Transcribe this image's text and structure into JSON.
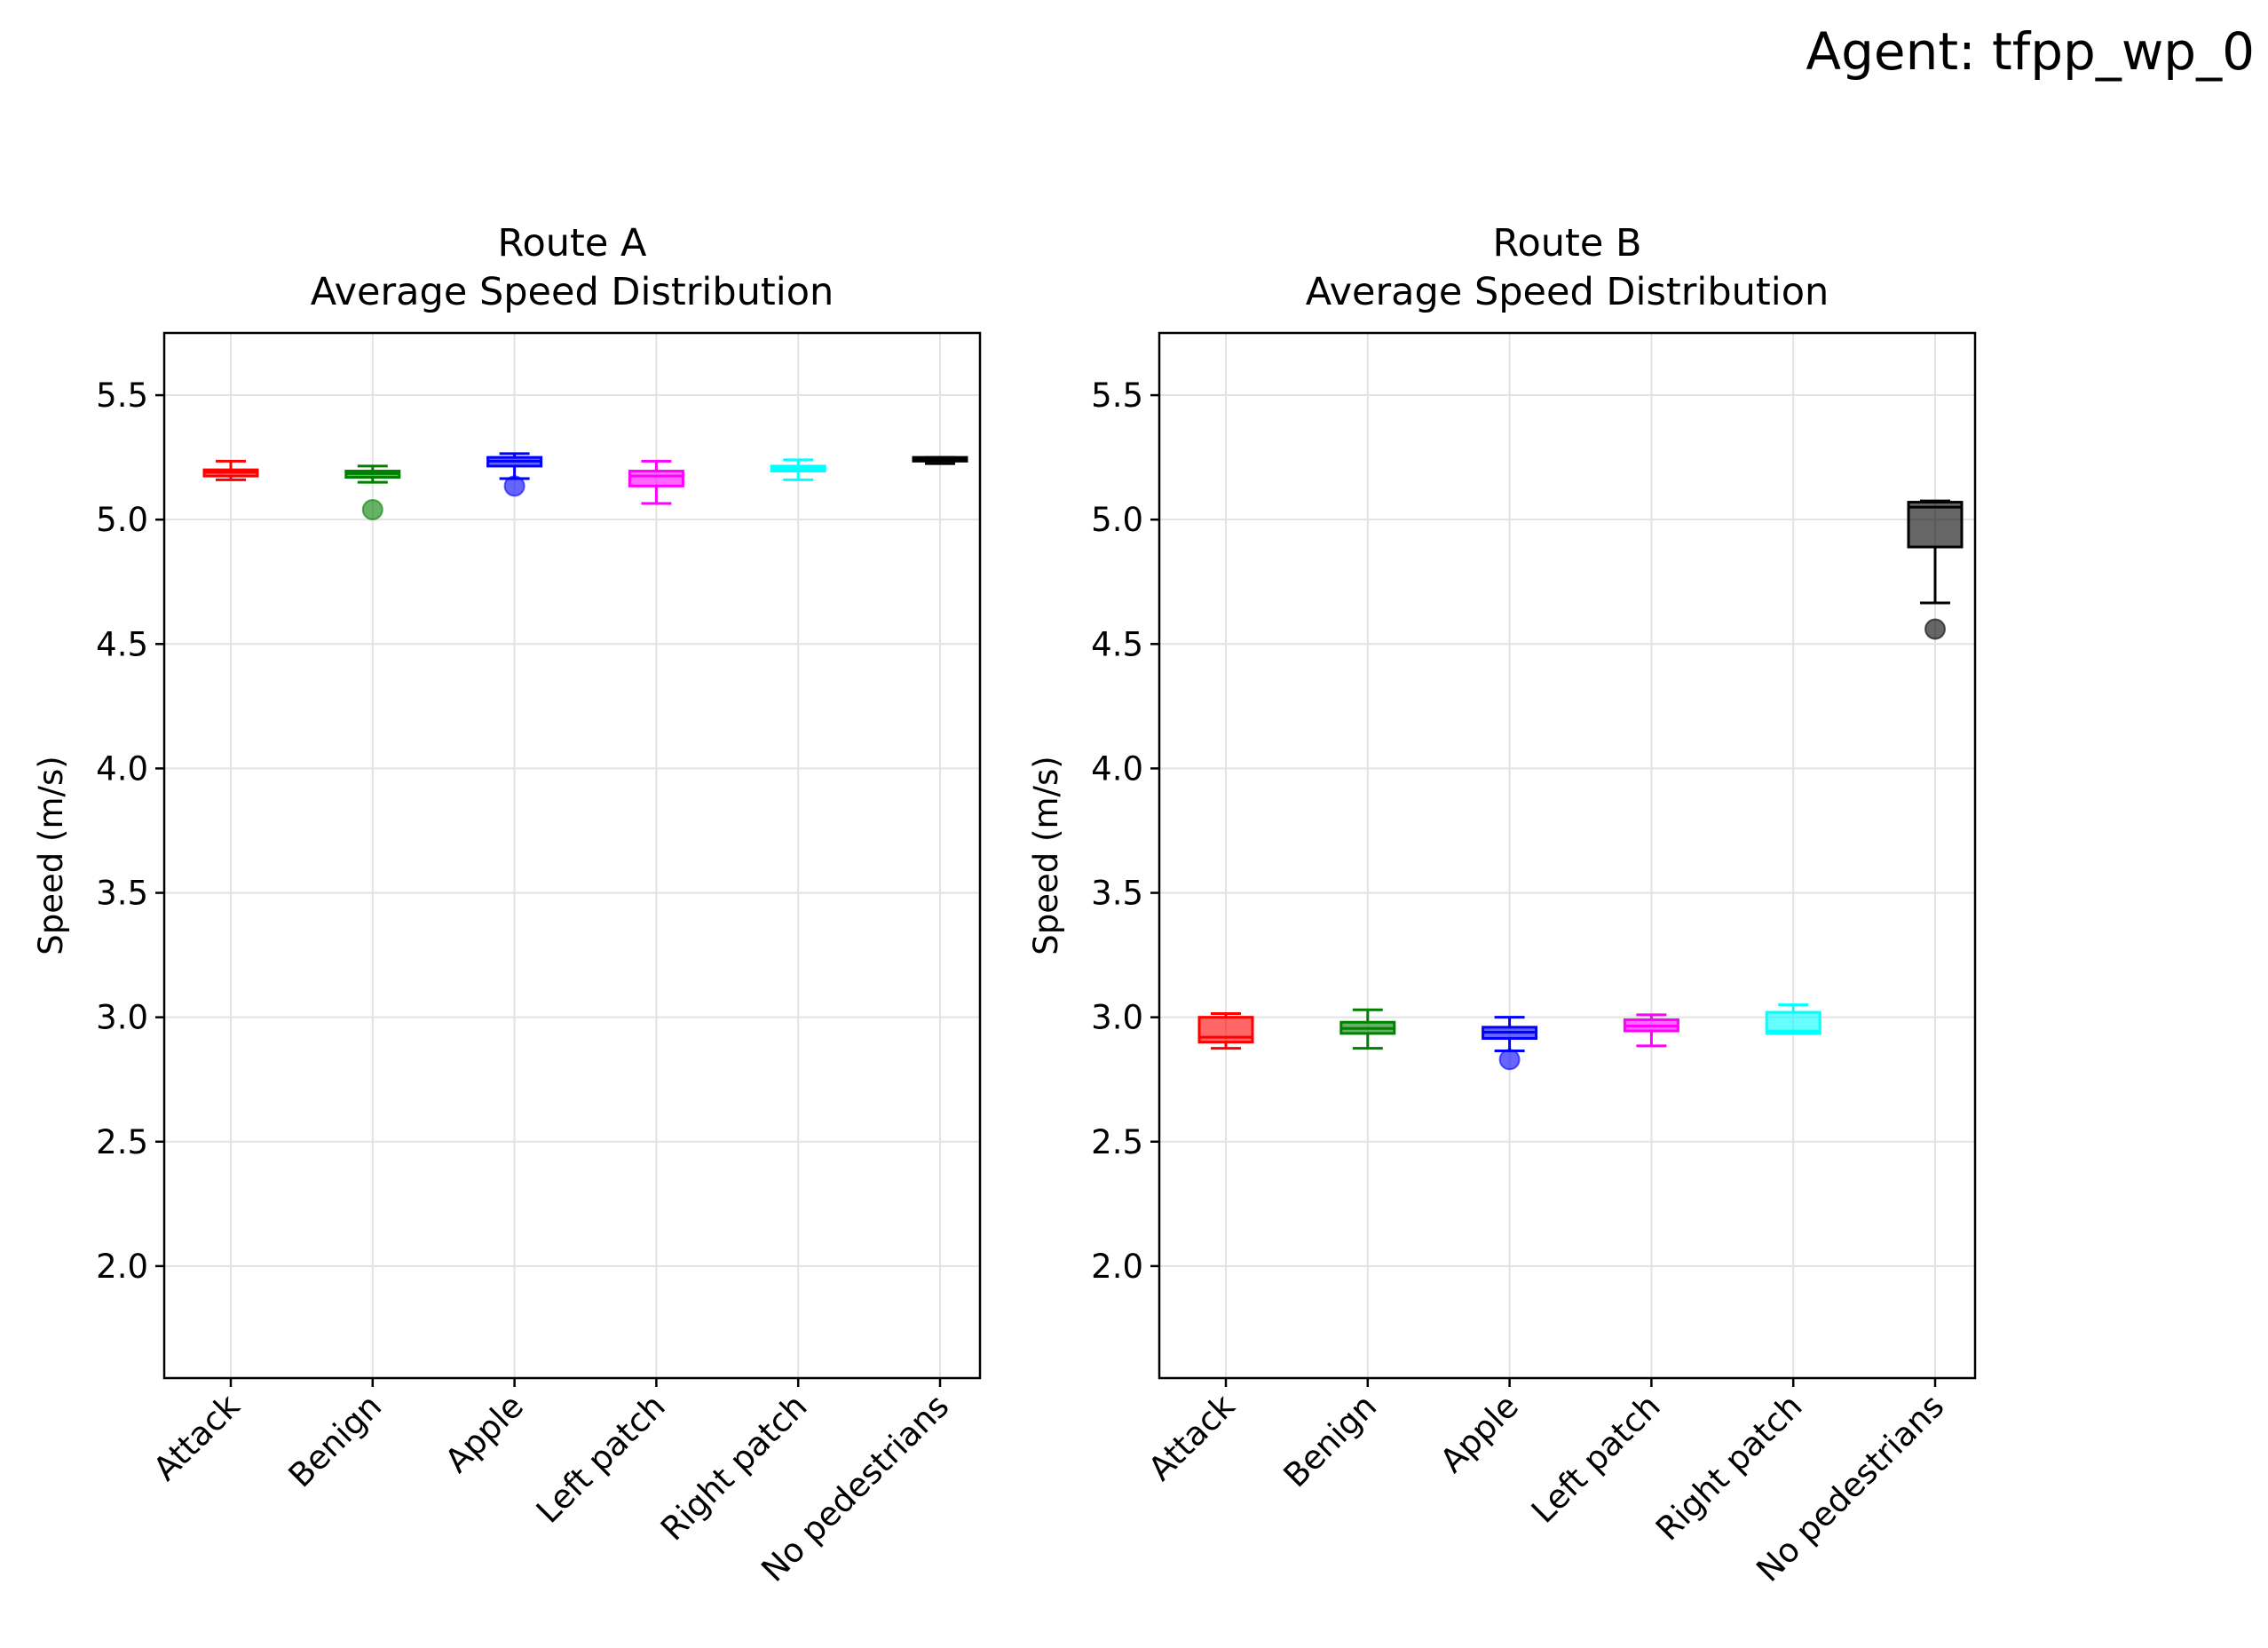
{
  "figure_title": "Agent: tfpp_wp_0",
  "colors": [
    "#ff0000",
    "#008000",
    "#0000ff",
    "#ff00ff",
    "#00ffff",
    "#000000"
  ],
  "chart_data": [
    {
      "type": "box",
      "title_line1": "Route A",
      "title_line2": "Average Speed Distribution",
      "xlabel": "",
      "ylabel": "Speed (m/s)",
      "ylim": [
        1.55,
        5.75
      ],
      "yticks": [
        "2.0",
        "2.5",
        "3.0",
        "3.5",
        "4.0",
        "4.5",
        "5.0",
        "5.5"
      ],
      "grid": true,
      "categories": [
        "Attack",
        "Benign",
        "Apple",
        "Left patch",
        "Right patch",
        "No pedestrians"
      ],
      "boxes": [
        {
          "whislo": 5.16,
          "q1": 5.175,
          "med": 5.19,
          "q3": 5.2,
          "whishi": 5.235,
          "fliers": []
        },
        {
          "whislo": 5.15,
          "q1": 5.17,
          "med": 5.185,
          "q3": 5.195,
          "whishi": 5.215,
          "fliers": [
            5.04
          ]
        },
        {
          "whislo": 5.165,
          "q1": 5.215,
          "med": 5.235,
          "q3": 5.25,
          "whishi": 5.265,
          "fliers": [
            5.135
          ]
        },
        {
          "whislo": 5.065,
          "q1": 5.135,
          "med": 5.175,
          "q3": 5.195,
          "whishi": 5.235,
          "fliers": []
        },
        {
          "whislo": 5.16,
          "q1": 5.195,
          "med": 5.205,
          "q3": 5.215,
          "whishi": 5.24,
          "fliers": []
        },
        {
          "whislo": 5.225,
          "q1": 5.235,
          "med": 5.245,
          "q3": 5.25,
          "whishi": 5.25,
          "fliers": []
        }
      ]
    },
    {
      "type": "box",
      "title_line1": "Route B",
      "title_line2": "Average Speed Distribution",
      "xlabel": "",
      "ylabel": "Speed (m/s)",
      "ylim": [
        1.55,
        5.75
      ],
      "yticks": [
        "2.0",
        "2.5",
        "3.0",
        "3.5",
        "4.0",
        "4.5",
        "5.0",
        "5.5"
      ],
      "grid": true,
      "categories": [
        "Attack",
        "Benign",
        "Apple",
        "Left patch",
        "Right patch",
        "No pedestrians"
      ],
      "boxes": [
        {
          "whislo": 2.875,
          "q1": 2.9,
          "med": 2.92,
          "q3": 3.0,
          "whishi": 3.015,
          "fliers": []
        },
        {
          "whislo": 2.875,
          "q1": 2.935,
          "med": 2.955,
          "q3": 2.98,
          "whishi": 3.03,
          "fliers": []
        },
        {
          "whislo": 2.865,
          "q1": 2.915,
          "med": 2.94,
          "q3": 2.96,
          "whishi": 3.0,
          "fliers": [
            2.83
          ]
        },
        {
          "whislo": 2.885,
          "q1": 2.945,
          "med": 2.965,
          "q3": 2.99,
          "whishi": 3.01,
          "fliers": []
        },
        {
          "whislo": 2.935,
          "q1": 2.935,
          "med": 2.945,
          "q3": 3.02,
          "whishi": 3.05,
          "fliers": []
        },
        {
          "whislo": 4.665,
          "q1": 4.89,
          "med": 5.05,
          "q3": 5.07,
          "whishi": 5.075,
          "fliers": [
            4.56
          ]
        }
      ]
    }
  ]
}
